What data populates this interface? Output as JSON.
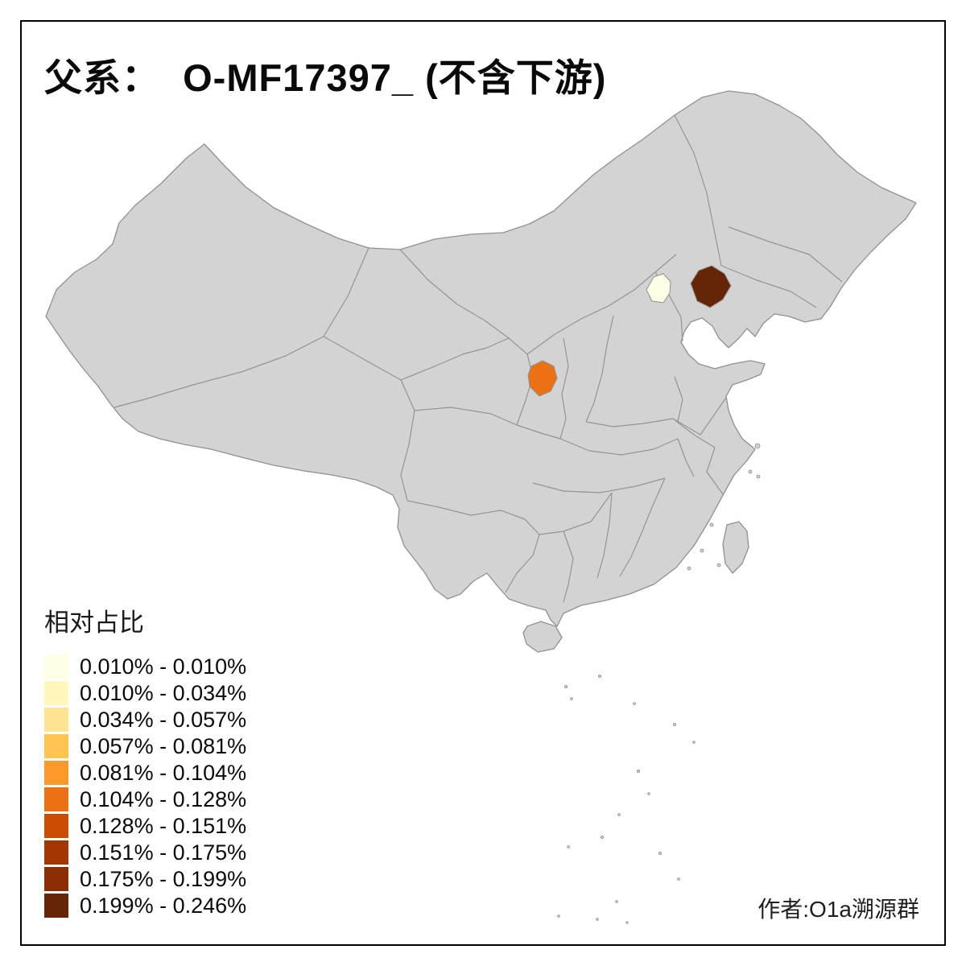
{
  "page": {
    "background": "#FFFFFF",
    "frame_color": "#000000"
  },
  "title": {
    "text": "父系：  O-MF17397_ (不含下游)"
  },
  "legend": {
    "title": "相对占比",
    "items": [
      {
        "range": "0.010% - 0.010%",
        "color": "#FFFFE5"
      },
      {
        "range": "0.010% - 0.034%",
        "color": "#FFF7BC"
      },
      {
        "range": "0.034% - 0.057%",
        "color": "#FEE391"
      },
      {
        "range": "0.057% - 0.081%",
        "color": "#FEC44F"
      },
      {
        "range": "0.081% - 0.104%",
        "color": "#FE9929"
      },
      {
        "range": "0.104% - 0.128%",
        "color": "#EC7014"
      },
      {
        "range": "0.128% - 0.151%",
        "color": "#CC4C02"
      },
      {
        "range": "0.151% - 0.175%",
        "color": "#A33703"
      },
      {
        "range": "0.175% - 0.199%",
        "color": "#8C2D04"
      },
      {
        "range": "0.199% - 0.246%",
        "color": "#662506"
      }
    ]
  },
  "attribution": {
    "text": "作者:O1a溯源群"
  },
  "map": {
    "land_color": "#D3D3D3",
    "border_color": "#909090",
    "sea_color": "#FFFFFF",
    "regions": [
      {
        "id": "north-light-region",
        "location_hint": "north (Beijing area)",
        "color": "#FFFFE5",
        "class": "0.010% - 0.010%"
      },
      {
        "id": "central-orange-region",
        "location_hint": "central China",
        "color": "#EC7014",
        "class": "0.104% - 0.128%"
      },
      {
        "id": "northeast-dark-region",
        "location_hint": "northeast China",
        "color": "#662506",
        "class": "0.199% - 0.246%"
      }
    ]
  }
}
